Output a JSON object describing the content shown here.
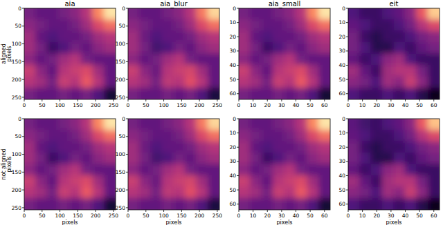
{
  "chart_data": [
    {
      "type": "heatmap",
      "title": "aia",
      "row_label": "aligned",
      "ylabel": "pixels",
      "xlim": [
        0,
        256
      ],
      "ylim": [
        0,
        256
      ],
      "xticks": [
        0,
        50,
        100,
        150,
        200,
        250
      ],
      "yticks": [
        0,
        50,
        100,
        150,
        200,
        250
      ],
      "zlim": [
        0,
        1
      ],
      "cells": [
        [
          0.35,
          0.3,
          0.3,
          0.35,
          0.4,
          0.5,
          0.75,
          0.95
        ],
        [
          0.4,
          0.35,
          0.3,
          0.3,
          0.35,
          0.45,
          0.6,
          0.7
        ],
        [
          0.45,
          0.3,
          0.25,
          0.3,
          0.3,
          0.35,
          0.45,
          0.5
        ],
        [
          0.45,
          0.35,
          0.2,
          0.25,
          0.35,
          0.3,
          0.4,
          0.45
        ],
        [
          0.4,
          0.3,
          0.35,
          0.45,
          0.5,
          0.35,
          0.3,
          0.3
        ],
        [
          0.55,
          0.4,
          0.3,
          0.5,
          0.55,
          0.6,
          0.45,
          0.3
        ],
        [
          0.5,
          0.45,
          0.35,
          0.55,
          0.5,
          0.65,
          0.5,
          0.3
        ],
        [
          0.35,
          0.3,
          0.3,
          0.35,
          0.3,
          0.35,
          0.25,
          0.1
        ]
      ]
    },
    {
      "type": "heatmap",
      "title": "aia_blur",
      "xlim": [
        0,
        256
      ],
      "ylim": [
        0,
        256
      ],
      "xticks": [
        0,
        50,
        100,
        150,
        200,
        250
      ],
      "yticks": [
        0,
        50,
        100,
        150,
        200,
        250
      ],
      "zlim": [
        0,
        1
      ],
      "cells": [
        [
          0.35,
          0.3,
          0.3,
          0.35,
          0.4,
          0.5,
          0.72,
          0.92
        ],
        [
          0.4,
          0.35,
          0.3,
          0.3,
          0.35,
          0.45,
          0.6,
          0.7
        ],
        [
          0.45,
          0.32,
          0.25,
          0.3,
          0.3,
          0.35,
          0.45,
          0.5
        ],
        [
          0.45,
          0.35,
          0.22,
          0.25,
          0.35,
          0.3,
          0.4,
          0.45
        ],
        [
          0.4,
          0.3,
          0.35,
          0.45,
          0.5,
          0.35,
          0.3,
          0.3
        ],
        [
          0.55,
          0.4,
          0.32,
          0.5,
          0.55,
          0.58,
          0.45,
          0.3
        ],
        [
          0.5,
          0.45,
          0.35,
          0.52,
          0.5,
          0.62,
          0.5,
          0.3
        ],
        [
          0.35,
          0.3,
          0.3,
          0.35,
          0.3,
          0.35,
          0.25,
          0.12
        ]
      ]
    },
    {
      "type": "heatmap",
      "title": "aia_small",
      "xlim": [
        0,
        64
      ],
      "ylim": [
        0,
        64
      ],
      "xticks": [
        0,
        10,
        20,
        30,
        40,
        50,
        60
      ],
      "yticks": [
        0,
        10,
        20,
        30,
        40,
        50,
        60
      ],
      "zlim": [
        0,
        1
      ],
      "cells": [
        [
          0.35,
          0.3,
          0.3,
          0.35,
          0.4,
          0.5,
          0.75,
          0.95
        ],
        [
          0.4,
          0.35,
          0.3,
          0.3,
          0.35,
          0.45,
          0.6,
          0.7
        ],
        [
          0.45,
          0.3,
          0.25,
          0.3,
          0.3,
          0.35,
          0.45,
          0.5
        ],
        [
          0.45,
          0.35,
          0.2,
          0.25,
          0.35,
          0.3,
          0.4,
          0.45
        ],
        [
          0.4,
          0.3,
          0.35,
          0.45,
          0.5,
          0.35,
          0.3,
          0.3
        ],
        [
          0.55,
          0.4,
          0.3,
          0.5,
          0.55,
          0.6,
          0.45,
          0.3
        ],
        [
          0.5,
          0.45,
          0.35,
          0.55,
          0.5,
          0.65,
          0.5,
          0.3
        ],
        [
          0.35,
          0.3,
          0.3,
          0.35,
          0.3,
          0.35,
          0.25,
          0.1
        ]
      ]
    },
    {
      "type": "heatmap",
      "title": "eit",
      "xlim": [
        0,
        64
      ],
      "ylim": [
        0,
        64
      ],
      "xticks": [
        0,
        10,
        20,
        30,
        40,
        50,
        60
      ],
      "yticks": [
        0,
        10,
        20,
        30,
        40,
        50,
        60
      ],
      "zlim": [
        0,
        1
      ],
      "cells": [
        [
          0.25,
          0.2,
          0.2,
          0.25,
          0.3,
          0.4,
          0.65,
          0.9
        ],
        [
          0.3,
          0.25,
          0.2,
          0.2,
          0.25,
          0.35,
          0.5,
          0.6
        ],
        [
          0.35,
          0.2,
          0.15,
          0.2,
          0.2,
          0.25,
          0.35,
          0.4
        ],
        [
          0.35,
          0.25,
          0.15,
          0.15,
          0.25,
          0.2,
          0.3,
          0.35
        ],
        [
          0.3,
          0.2,
          0.25,
          0.4,
          0.45,
          0.25,
          0.2,
          0.2
        ],
        [
          0.45,
          0.3,
          0.2,
          0.45,
          0.5,
          0.5,
          0.35,
          0.2
        ],
        [
          0.4,
          0.35,
          0.25,
          0.45,
          0.4,
          0.55,
          0.4,
          0.2
        ],
        [
          0.25,
          0.2,
          0.2,
          0.25,
          0.2,
          0.25,
          0.15,
          0.05
        ]
      ]
    },
    {
      "type": "heatmap",
      "row_label": "not aligned",
      "ylabel": "pixels",
      "xlabel": "pixels",
      "xlim": [
        0,
        256
      ],
      "ylim": [
        0,
        256
      ],
      "xticks": [
        0,
        50,
        100,
        150,
        200,
        250
      ],
      "yticks": [
        0,
        50,
        100,
        150,
        200,
        250
      ],
      "zlim": [
        0,
        1
      ],
      "cells": [
        [
          0.35,
          0.3,
          0.3,
          0.35,
          0.4,
          0.5,
          0.75,
          0.95
        ],
        [
          0.4,
          0.35,
          0.3,
          0.3,
          0.35,
          0.45,
          0.6,
          0.7
        ],
        [
          0.45,
          0.3,
          0.25,
          0.3,
          0.3,
          0.35,
          0.45,
          0.5
        ],
        [
          0.45,
          0.35,
          0.2,
          0.25,
          0.35,
          0.3,
          0.4,
          0.45
        ],
        [
          0.4,
          0.3,
          0.35,
          0.45,
          0.5,
          0.35,
          0.3,
          0.3
        ],
        [
          0.55,
          0.4,
          0.3,
          0.5,
          0.55,
          0.6,
          0.45,
          0.3
        ],
        [
          0.5,
          0.45,
          0.35,
          0.55,
          0.5,
          0.65,
          0.5,
          0.3
        ],
        [
          0.35,
          0.3,
          0.3,
          0.35,
          0.3,
          0.35,
          0.25,
          0.1
        ]
      ]
    },
    {
      "type": "heatmap",
      "xlabel": "pixels",
      "xlim": [
        0,
        256
      ],
      "ylim": [
        0,
        256
      ],
      "xticks": [
        0,
        50,
        100,
        150,
        200,
        250
      ],
      "yticks": [
        0,
        50,
        100,
        150,
        200,
        250
      ],
      "zlim": [
        0,
        1
      ],
      "cells": [
        [
          0.35,
          0.3,
          0.3,
          0.35,
          0.4,
          0.5,
          0.72,
          0.92
        ],
        [
          0.4,
          0.35,
          0.3,
          0.3,
          0.35,
          0.45,
          0.6,
          0.7
        ],
        [
          0.45,
          0.32,
          0.25,
          0.3,
          0.3,
          0.35,
          0.45,
          0.5
        ],
        [
          0.45,
          0.35,
          0.22,
          0.25,
          0.35,
          0.3,
          0.4,
          0.45
        ],
        [
          0.4,
          0.3,
          0.35,
          0.45,
          0.5,
          0.35,
          0.3,
          0.3
        ],
        [
          0.55,
          0.4,
          0.32,
          0.5,
          0.55,
          0.58,
          0.45,
          0.3
        ],
        [
          0.5,
          0.45,
          0.35,
          0.52,
          0.5,
          0.62,
          0.5,
          0.3
        ],
        [
          0.35,
          0.3,
          0.3,
          0.35,
          0.3,
          0.35,
          0.25,
          0.12
        ]
      ]
    },
    {
      "type": "heatmap",
      "xlabel": "pixels",
      "xlim": [
        0,
        64
      ],
      "ylim": [
        0,
        64
      ],
      "xticks": [
        0,
        10,
        20,
        30,
        40,
        50,
        60
      ],
      "yticks": [
        0,
        10,
        20,
        30,
        40,
        50,
        60
      ],
      "zlim": [
        0,
        1
      ],
      "cells": [
        [
          0.35,
          0.3,
          0.3,
          0.35,
          0.4,
          0.5,
          0.75,
          0.95
        ],
        [
          0.4,
          0.35,
          0.3,
          0.3,
          0.35,
          0.45,
          0.6,
          0.7
        ],
        [
          0.45,
          0.3,
          0.25,
          0.3,
          0.3,
          0.35,
          0.45,
          0.5
        ],
        [
          0.45,
          0.35,
          0.2,
          0.25,
          0.35,
          0.3,
          0.4,
          0.45
        ],
        [
          0.4,
          0.3,
          0.35,
          0.45,
          0.5,
          0.35,
          0.3,
          0.3
        ],
        [
          0.55,
          0.4,
          0.3,
          0.5,
          0.55,
          0.6,
          0.45,
          0.3
        ],
        [
          0.5,
          0.45,
          0.35,
          0.55,
          0.5,
          0.65,
          0.5,
          0.3
        ],
        [
          0.35,
          0.3,
          0.3,
          0.35,
          0.3,
          0.35,
          0.25,
          0.1
        ]
      ]
    },
    {
      "type": "heatmap",
      "xlabel": "pixels",
      "xlim": [
        0,
        64
      ],
      "ylim": [
        0,
        64
      ],
      "xticks": [
        0,
        10,
        20,
        30,
        40,
        50,
        60
      ],
      "yticks": [
        0,
        10,
        20,
        30,
        40,
        50,
        60
      ],
      "zlim": [
        0,
        1
      ],
      "cells": [
        [
          0.28,
          0.22,
          0.2,
          0.25,
          0.3,
          0.4,
          0.65,
          0.88
        ],
        [
          0.3,
          0.25,
          0.2,
          0.2,
          0.25,
          0.35,
          0.5,
          0.6
        ],
        [
          0.35,
          0.2,
          0.15,
          0.2,
          0.2,
          0.25,
          0.35,
          0.4
        ],
        [
          0.35,
          0.25,
          0.15,
          0.15,
          0.25,
          0.2,
          0.3,
          0.35
        ],
        [
          0.3,
          0.2,
          0.25,
          0.4,
          0.45,
          0.25,
          0.2,
          0.2
        ],
        [
          0.45,
          0.3,
          0.2,
          0.45,
          0.5,
          0.5,
          0.35,
          0.2
        ],
        [
          0.4,
          0.35,
          0.25,
          0.45,
          0.4,
          0.55,
          0.4,
          0.2
        ],
        [
          0.25,
          0.2,
          0.2,
          0.25,
          0.2,
          0.25,
          0.15,
          0.05
        ]
      ]
    }
  ]
}
